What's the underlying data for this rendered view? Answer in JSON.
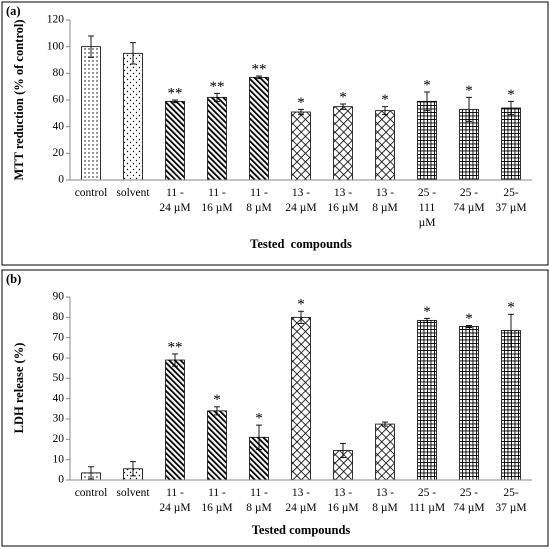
{
  "chart_data": [
    {
      "type": "bar",
      "panel_label": "(a)",
      "ylabel": "MTT reduction (% of control)",
      "xlabel": "Tested  compounds",
      "categories": [
        "control",
        "solvent",
        "11 -\n24 µM",
        "11 -\n16 µM",
        "11 -\n8 µM",
        "13 -\n24 µM",
        "13 -\n16 µM",
        "13 -\n8 µM",
        "25 -\n111\nµM",
        "25 -\n74 µM",
        "25-\n37 µM"
      ],
      "values": [
        100,
        95,
        59,
        62,
        77,
        51,
        55,
        52,
        59,
        53,
        54
      ],
      "errors": [
        8,
        8,
        1,
        3,
        1,
        2,
        2,
        3,
        7,
        9,
        5
      ],
      "annotations": [
        null,
        null,
        "**",
        "**",
        "**",
        "*",
        "*",
        "*",
        "*",
        "*",
        "*"
      ],
      "patterns": [
        "dots",
        "dots-sparse",
        "diagonal",
        "diagonal",
        "diagonal",
        "cross",
        "cross",
        "cross",
        "grid",
        "grid",
        "grid"
      ],
      "ylim": [
        0,
        120
      ],
      "yticks": [
        0,
        20,
        40,
        60,
        80,
        100,
        120
      ]
    },
    {
      "type": "bar",
      "panel_label": "(b)",
      "ylabel": "LDH release (%)",
      "xlabel": "Tested compounds",
      "categories": [
        "control",
        "solvent",
        "11 -\n24 µM",
        "11 -\n16 µM",
        "11 -\n8 µM",
        "13 -\n24 µM",
        "13 -\n16 µM",
        "13 -\n8 µM",
        "25 -\n111 µM",
        "25 -\n74 µM",
        "25-\n37 µM"
      ],
      "values": [
        3.5,
        5.5,
        59,
        34,
        21,
        80,
        14.5,
        27.5,
        78.5,
        75.5,
        73.5
      ],
      "errors": [
        3,
        3.5,
        3,
        2,
        6,
        3,
        3.5,
        1,
        1,
        0.5,
        8
      ],
      "annotations": [
        null,
        null,
        "**",
        "*",
        "*",
        "*",
        null,
        null,
        "*",
        "*",
        "*"
      ],
      "patterns": [
        "dots",
        "dots-sparse",
        "diagonal",
        "diagonal",
        "diagonal",
        "cross",
        "cross",
        "cross",
        "grid",
        "grid",
        "grid"
      ],
      "ylim": [
        0,
        90
      ],
      "yticks": [
        0,
        10,
        20,
        30,
        40,
        50,
        60,
        70,
        80,
        90
      ]
    }
  ]
}
